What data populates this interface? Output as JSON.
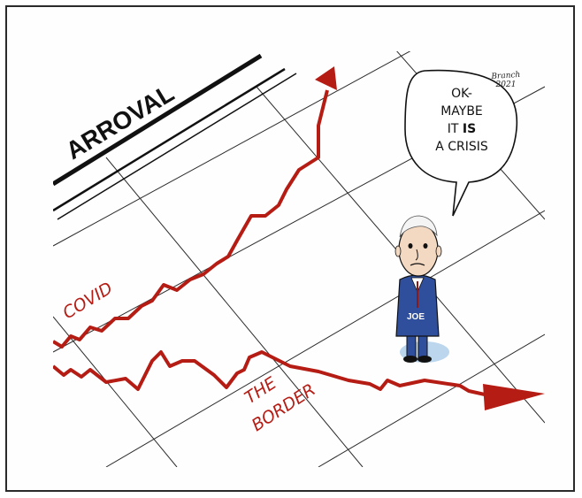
{
  "cartoon": {
    "banner": "ARROVAL",
    "covid_label": "COVID",
    "border_label_line1": "THE",
    "border_label_line2": "BORDER",
    "speech_line1": "OK-",
    "speech_line2": "MAYBE",
    "speech_line3_prefix": "IT ",
    "speech_line3_bold": "IS",
    "speech_line4": "A CRISIS",
    "jacket_text": "JOE",
    "signature_line1": "Branch",
    "signature_line2": "2021"
  },
  "colors": {
    "trend_red": "#b51c14",
    "ink": "#111111",
    "suit_blue": "#2f4f9c",
    "shadow_blue": "#bcd6ee"
  }
}
